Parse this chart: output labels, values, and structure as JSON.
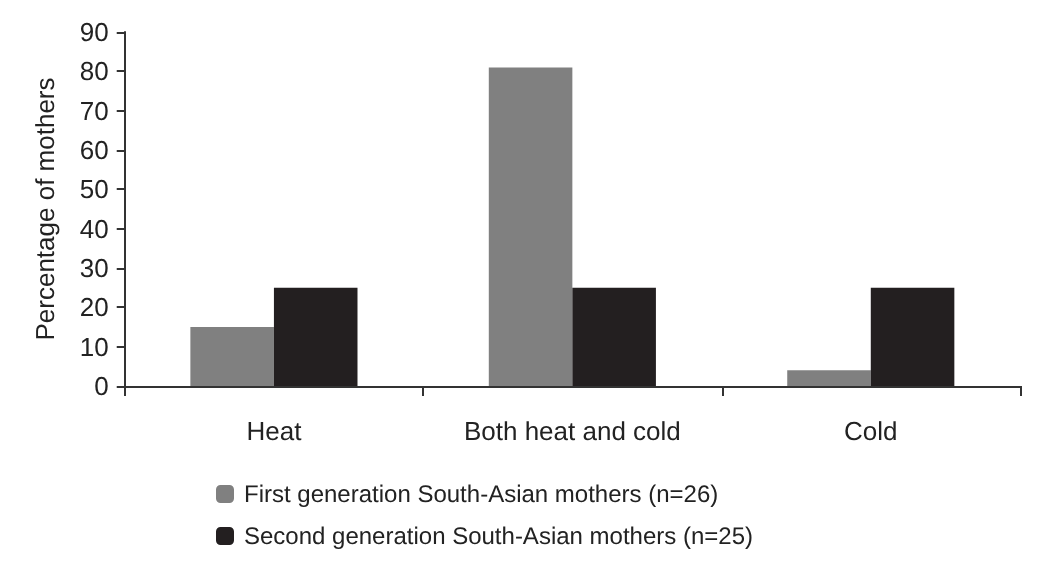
{
  "chart_data": {
    "type": "bar",
    "ylabel": "Percentage of mothers",
    "categories": [
      "Heat",
      "Both heat and cold",
      "Cold"
    ],
    "series": [
      {
        "name": "First generation South-Asian mothers (n=26)",
        "color": "#808080",
        "values": [
          15,
          81,
          4
        ]
      },
      {
        "name": "Second generation South-Asian mothers (n=25)",
        "color": "#231f20",
        "values": [
          25,
          25,
          25
        ]
      }
    ],
    "ylim": [
      0,
      90
    ],
    "yticks": [
      0,
      10,
      20,
      30,
      40,
      50,
      60,
      70,
      80,
      90
    ],
    "grid": false,
    "legend": "bottom"
  }
}
